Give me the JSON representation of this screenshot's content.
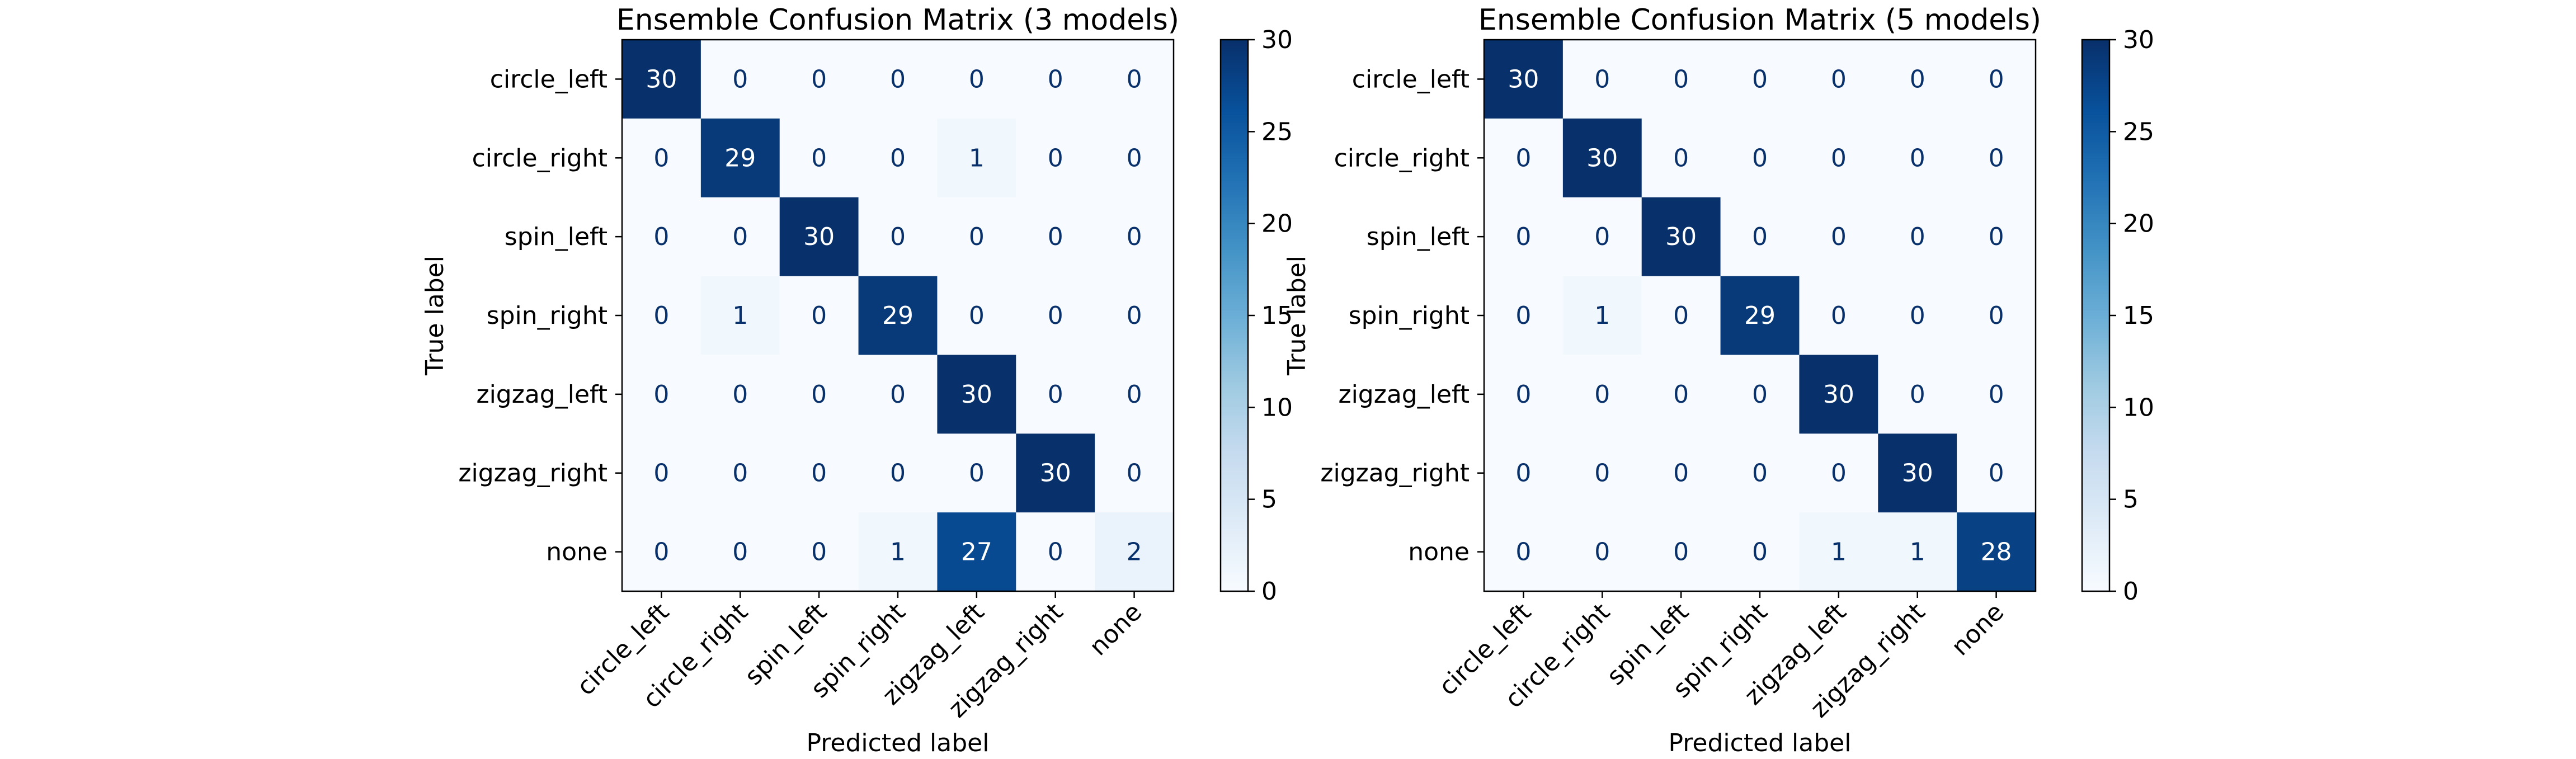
{
  "chart_data": [
    {
      "type": "heatmap",
      "title": "Ensemble Confusion Matrix (3 models)",
      "xlabel": "Predicted label",
      "ylabel": "True label",
      "x_categories": [
        "circle_left",
        "circle_right",
        "spin_left",
        "spin_right",
        "zigzag_left",
        "zigzag_right",
        "none"
      ],
      "y_categories": [
        "circle_left",
        "circle_right",
        "spin_left",
        "spin_right",
        "zigzag_left",
        "zigzag_right",
        "none"
      ],
      "values": [
        [
          30,
          0,
          0,
          0,
          0,
          0,
          0
        ],
        [
          0,
          29,
          0,
          0,
          1,
          0,
          0
        ],
        [
          0,
          0,
          30,
          0,
          0,
          0,
          0
        ],
        [
          0,
          1,
          0,
          29,
          0,
          0,
          0
        ],
        [
          0,
          0,
          0,
          0,
          30,
          0,
          0
        ],
        [
          0,
          0,
          0,
          0,
          0,
          30,
          0
        ],
        [
          0,
          0,
          0,
          1,
          27,
          0,
          2
        ]
      ],
      "colorbar": {
        "range": [
          0,
          30
        ],
        "ticks": [
          0,
          5,
          10,
          15,
          20,
          25,
          30
        ]
      },
      "colormap": "Blues"
    },
    {
      "type": "heatmap",
      "title": "Ensemble Confusion Matrix (5 models)",
      "xlabel": "Predicted label",
      "ylabel": "True label",
      "x_categories": [
        "circle_left",
        "circle_right",
        "spin_left",
        "spin_right",
        "zigzag_left",
        "zigzag_right",
        "none"
      ],
      "y_categories": [
        "circle_left",
        "circle_right",
        "spin_left",
        "spin_right",
        "zigzag_left",
        "zigzag_right",
        "none"
      ],
      "values": [
        [
          30,
          0,
          0,
          0,
          0,
          0,
          0
        ],
        [
          0,
          30,
          0,
          0,
          0,
          0,
          0
        ],
        [
          0,
          0,
          30,
          0,
          0,
          0,
          0
        ],
        [
          0,
          1,
          0,
          29,
          0,
          0,
          0
        ],
        [
          0,
          0,
          0,
          0,
          30,
          0,
          0
        ],
        [
          0,
          0,
          0,
          0,
          0,
          30,
          0
        ],
        [
          0,
          0,
          0,
          0,
          1,
          1,
          28
        ]
      ],
      "colorbar": {
        "range": [
          0,
          30
        ],
        "ticks": [
          0,
          5,
          10,
          15,
          20,
          25,
          30
        ]
      },
      "colormap": "Blues"
    }
  ]
}
